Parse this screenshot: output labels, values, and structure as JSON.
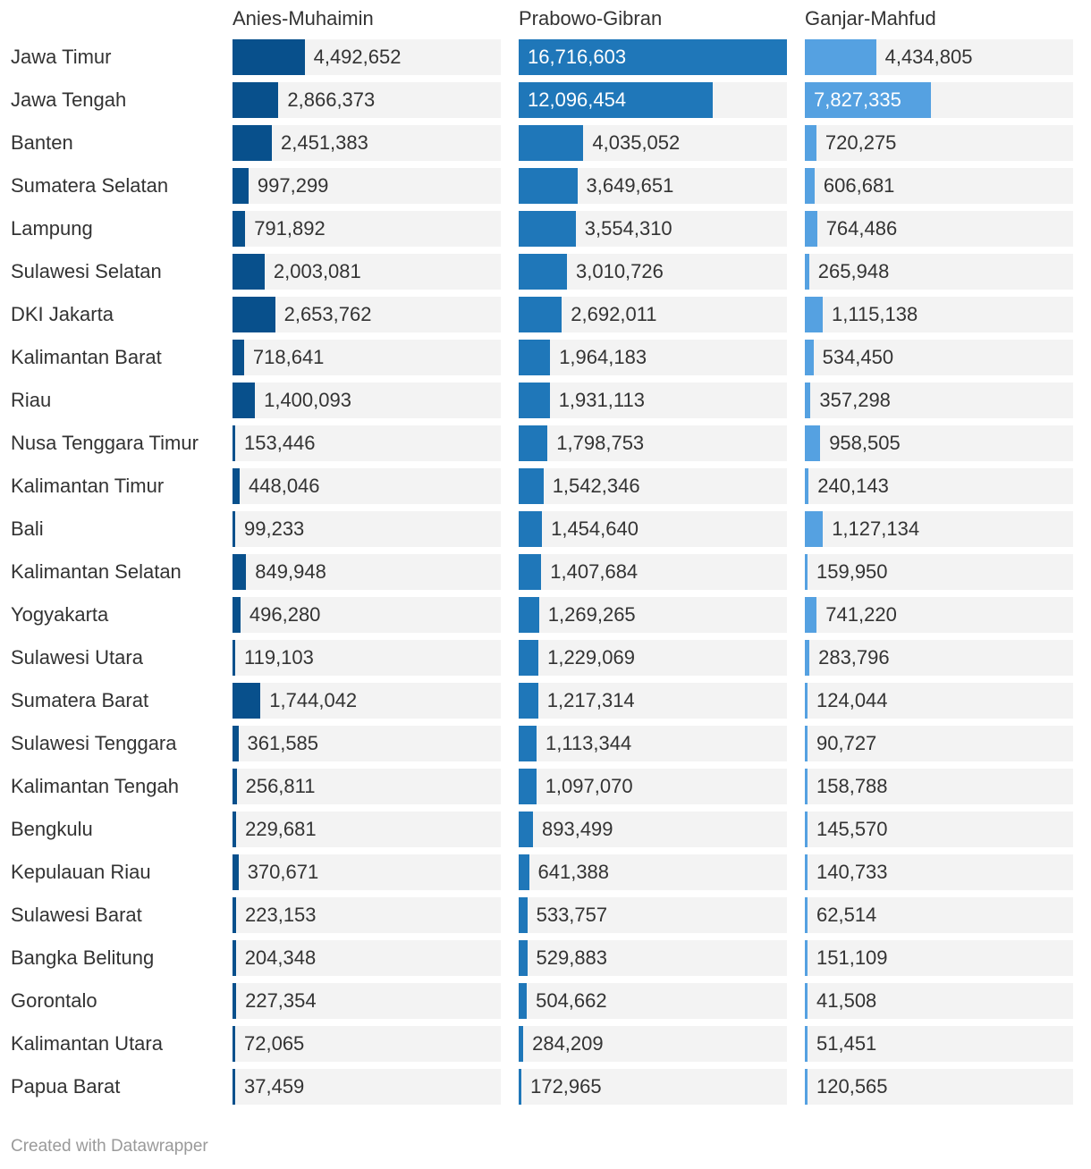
{
  "chart_data": {
    "type": "bar",
    "orientation": "horizontal",
    "layout": "split-bars",
    "categories": [
      "Jawa Timur",
      "Jawa Tengah",
      "Banten",
      "Sumatera Selatan",
      "Lampung",
      "Sulawesi Selatan",
      "DKI Jakarta",
      "Kalimantan Barat",
      "Riau",
      "Nusa Tenggara Timur",
      "Kalimantan Timur",
      "Bali",
      "Kalimantan Selatan",
      "Yogyakarta",
      "Sulawesi Utara",
      "Sumatera Barat",
      "Sulawesi Tenggara",
      "Kalimantan Tengah",
      "Bengkulu",
      "Kepulauan Riau",
      "Sulawesi Barat",
      "Bangka Belitung",
      "Gorontalo",
      "Kalimantan Utara",
      "Papua Barat"
    ],
    "series": [
      {
        "name": "Anies-Muhaimin",
        "color": "#08508c",
        "values": [
          4492652,
          2866373,
          2451383,
          997299,
          791892,
          2003081,
          2653762,
          718641,
          1400093,
          153446,
          448046,
          99233,
          849948,
          496280,
          119103,
          1744042,
          361585,
          256811,
          229681,
          370671,
          223153,
          204348,
          227354,
          72065,
          37459
        ],
        "labels": [
          "4,492,652",
          "2,866,373",
          "2,451,383",
          "997,299",
          "791,892",
          "2,003,081",
          "2,653,762",
          "718,641",
          "1,400,093",
          "153,446",
          "448,046",
          "99,233",
          "849,948",
          "496,280",
          "119,103",
          "1,744,042",
          "361,585",
          "256,811",
          "229,681",
          "370,671",
          "223,153",
          "204,348",
          "227,354",
          "72,065",
          "37,459"
        ]
      },
      {
        "name": "Prabowo-Gibran",
        "color": "#1f77b9",
        "values": [
          16716603,
          12096454,
          4035052,
          3649651,
          3554310,
          3010726,
          2692011,
          1964183,
          1931113,
          1798753,
          1542346,
          1454640,
          1407684,
          1269265,
          1229069,
          1217314,
          1113344,
          1097070,
          893499,
          641388,
          533757,
          529883,
          504662,
          284209,
          172965
        ],
        "labels": [
          "16,716,603",
          "12,096,454",
          "4,035,052",
          "3,649,651",
          "3,554,310",
          "3,010,726",
          "2,692,011",
          "1,964,183",
          "1,931,113",
          "1,798,753",
          "1,542,346",
          "1,454,640",
          "1,407,684",
          "1,269,265",
          "1,229,069",
          "1,217,314",
          "1,113,344",
          "1,097,070",
          "893,499",
          "641,388",
          "533,757",
          "529,883",
          "504,662",
          "284,209",
          "172,965"
        ]
      },
      {
        "name": "Ganjar-Mahfud",
        "color": "#55a1e1",
        "values": [
          4434805,
          7827335,
          720275,
          606681,
          764486,
          265948,
          1115138,
          534450,
          357298,
          958505,
          240143,
          1127134,
          159950,
          741220,
          283796,
          124044,
          90727,
          158788,
          145570,
          140733,
          62514,
          151109,
          41508,
          51451,
          120565
        ],
        "labels": [
          "4,434,805",
          "7,827,335",
          "720,275",
          "606,681",
          "764,486",
          "265,948",
          "1,115,138",
          "534,450",
          "357,298",
          "958,505",
          "240,143",
          "1,127,134",
          "159,950",
          "741,220",
          "283,796",
          "124,044",
          "90,727",
          "158,788",
          "145,570",
          "140,733",
          "62,514",
          "151,109",
          "41,508",
          "51,451",
          "120,565"
        ]
      }
    ],
    "xlim": [
      0,
      16716603
    ],
    "background_track_color": "#f3f3f3"
  },
  "footer": "Created with Datawrapper"
}
